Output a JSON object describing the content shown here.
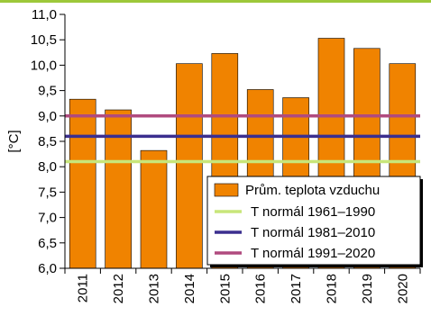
{
  "chart_data": {
    "type": "bar",
    "ylabel": "[°C]",
    "ylim": [
      6.0,
      11.0
    ],
    "yticks": [
      "6,0",
      "6,5",
      "7,0",
      "7,5",
      "8,0",
      "8,5",
      "9,0",
      "9,5",
      "10,0",
      "10,5",
      "11,0"
    ],
    "categories": [
      "2011",
      "2012",
      "2013",
      "2014",
      "2015",
      "2016",
      "2017",
      "2018",
      "2019",
      "2020"
    ],
    "grid": false,
    "legend_position": "bottom-right",
    "bar_series": {
      "name": "Prům. teplota vzduchu",
      "color": "#f08300",
      "values": [
        9.33,
        9.12,
        8.32,
        10.03,
        10.23,
        9.52,
        9.36,
        10.53,
        10.33,
        10.03
      ]
    },
    "line_series": [
      {
        "name": "T normál 1961–1990",
        "color": "#c8e67a",
        "value": 8.1
      },
      {
        "name": "T normál 1981–2010",
        "color": "#3b2f8f",
        "value": 8.6
      },
      {
        "name": "T normál 1991–2020",
        "color": "#b04a7e",
        "value": 9.0
      }
    ]
  },
  "colors": {
    "top_border": "#9dc83a"
  }
}
